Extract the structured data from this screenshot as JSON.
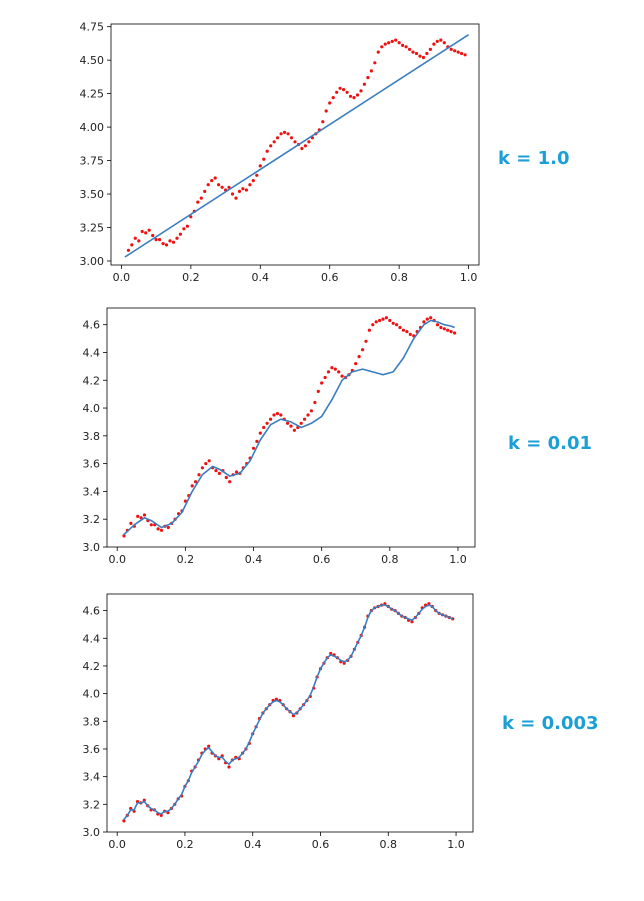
{
  "colors": {
    "fit": "#3a7ebf",
    "points": "#ee1111",
    "axis": "#000000",
    "label": "#1a9fd6"
  },
  "chart_data": [
    {
      "type": "scatter",
      "title": "",
      "annotation": "k = 1.0",
      "xlabel": "",
      "ylabel": "",
      "xlim": [
        -0.03,
        1.03
      ],
      "ylim": [
        2.97,
        4.77
      ],
      "xticks": [
        0.0,
        0.2,
        0.4,
        0.6,
        0.8,
        1.0
      ],
      "xtick_labels": [
        "0.0",
        "0.2",
        "0.4",
        "0.6",
        "0.8",
        "1.0"
      ],
      "yticks": [
        3.0,
        3.25,
        3.5,
        3.75,
        4.0,
        4.25,
        4.5,
        4.75
      ],
      "ytick_labels": [
        "3.00",
        "3.25",
        "3.50",
        "3.75",
        "4.00",
        "4.25",
        "4.50",
        "4.75"
      ],
      "grid": false,
      "series": [
        {
          "kind": "points",
          "x": [
            0.02,
            0.03,
            0.04,
            0.05,
            0.06,
            0.07,
            0.08,
            0.09,
            0.1,
            0.11,
            0.12,
            0.13,
            0.14,
            0.15,
            0.16,
            0.17,
            0.18,
            0.19,
            0.2,
            0.21,
            0.22,
            0.23,
            0.24,
            0.25,
            0.26,
            0.27,
            0.28,
            0.29,
            0.3,
            0.31,
            0.32,
            0.33,
            0.34,
            0.35,
            0.36,
            0.37,
            0.38,
            0.39,
            0.4,
            0.41,
            0.42,
            0.43,
            0.44,
            0.45,
            0.46,
            0.47,
            0.48,
            0.49,
            0.5,
            0.51,
            0.52,
            0.53,
            0.54,
            0.55,
            0.56,
            0.57,
            0.58,
            0.59,
            0.6,
            0.61,
            0.62,
            0.63,
            0.64,
            0.65,
            0.66,
            0.67,
            0.68,
            0.69,
            0.7,
            0.71,
            0.72,
            0.73,
            0.74,
            0.75,
            0.76,
            0.77,
            0.78,
            0.79,
            0.8,
            0.81,
            0.82,
            0.83,
            0.84,
            0.85,
            0.86,
            0.87,
            0.88,
            0.89,
            0.9,
            0.91,
            0.92,
            0.93,
            0.94,
            0.95,
            0.96,
            0.97,
            0.98,
            0.99
          ],
          "y": [
            3.08,
            3.12,
            3.17,
            3.15,
            3.22,
            3.21,
            3.23,
            3.19,
            3.16,
            3.16,
            3.13,
            3.12,
            3.15,
            3.14,
            3.17,
            3.2,
            3.24,
            3.26,
            3.33,
            3.37,
            3.44,
            3.47,
            3.52,
            3.57,
            3.6,
            3.62,
            3.57,
            3.55,
            3.53,
            3.55,
            3.5,
            3.47,
            3.52,
            3.54,
            3.53,
            3.57,
            3.6,
            3.64,
            3.71,
            3.76,
            3.82,
            3.86,
            3.89,
            3.92,
            3.95,
            3.96,
            3.95,
            3.92,
            3.89,
            3.87,
            3.84,
            3.86,
            3.89,
            3.92,
            3.95,
            3.98,
            4.04,
            4.12,
            4.18,
            4.22,
            4.26,
            4.29,
            4.28,
            4.26,
            4.23,
            4.22,
            4.24,
            4.27,
            4.32,
            4.37,
            4.42,
            4.48,
            4.56,
            4.6,
            4.62,
            4.63,
            4.64,
            4.65,
            4.63,
            4.61,
            4.6,
            4.58,
            4.56,
            4.55,
            4.53,
            4.52,
            4.55,
            4.58,
            4.62,
            4.64,
            4.65,
            4.63,
            4.6,
            4.58,
            4.57,
            4.56,
            4.55,
            4.54
          ]
        },
        {
          "kind": "line",
          "x": [
            0.01,
            1.0
          ],
          "y": [
            3.03,
            4.69
          ]
        }
      ]
    },
    {
      "type": "scatter",
      "title": "",
      "annotation": "k = 0.01",
      "xlabel": "",
      "ylabel": "",
      "xlim": [
        -0.03,
        1.05
      ],
      "ylim": [
        3.0,
        4.72
      ],
      "xticks": [
        0.0,
        0.2,
        0.4,
        0.6,
        0.8,
        1.0
      ],
      "xtick_labels": [
        "0.0",
        "0.2",
        "0.4",
        "0.6",
        "0.8",
        "1.0"
      ],
      "yticks": [
        3.0,
        3.2,
        3.4,
        3.6,
        3.8,
        4.0,
        4.2,
        4.4,
        4.6
      ],
      "ytick_labels": [
        "3.0",
        "3.2",
        "3.4",
        "3.6",
        "3.8",
        "4.0",
        "4.2",
        "4.4",
        "4.6"
      ],
      "grid": false,
      "series": [
        {
          "kind": "points",
          "x": [
            0.02,
            0.03,
            0.04,
            0.05,
            0.06,
            0.07,
            0.08,
            0.09,
            0.1,
            0.11,
            0.12,
            0.13,
            0.14,
            0.15,
            0.16,
            0.17,
            0.18,
            0.19,
            0.2,
            0.21,
            0.22,
            0.23,
            0.24,
            0.25,
            0.26,
            0.27,
            0.28,
            0.29,
            0.3,
            0.31,
            0.32,
            0.33,
            0.34,
            0.35,
            0.36,
            0.37,
            0.38,
            0.39,
            0.4,
            0.41,
            0.42,
            0.43,
            0.44,
            0.45,
            0.46,
            0.47,
            0.48,
            0.49,
            0.5,
            0.51,
            0.52,
            0.53,
            0.54,
            0.55,
            0.56,
            0.57,
            0.58,
            0.59,
            0.6,
            0.61,
            0.62,
            0.63,
            0.64,
            0.65,
            0.66,
            0.67,
            0.68,
            0.69,
            0.7,
            0.71,
            0.72,
            0.73,
            0.74,
            0.75,
            0.76,
            0.77,
            0.78,
            0.79,
            0.8,
            0.81,
            0.82,
            0.83,
            0.84,
            0.85,
            0.86,
            0.87,
            0.88,
            0.89,
            0.9,
            0.91,
            0.92,
            0.93,
            0.94,
            0.95,
            0.96,
            0.97,
            0.98,
            0.99
          ],
          "y": [
            3.08,
            3.12,
            3.17,
            3.15,
            3.22,
            3.21,
            3.23,
            3.19,
            3.16,
            3.16,
            3.13,
            3.12,
            3.15,
            3.14,
            3.17,
            3.2,
            3.24,
            3.26,
            3.33,
            3.37,
            3.44,
            3.47,
            3.52,
            3.57,
            3.6,
            3.62,
            3.57,
            3.55,
            3.53,
            3.55,
            3.5,
            3.47,
            3.52,
            3.54,
            3.53,
            3.57,
            3.6,
            3.64,
            3.71,
            3.76,
            3.82,
            3.86,
            3.89,
            3.92,
            3.95,
            3.96,
            3.95,
            3.92,
            3.89,
            3.87,
            3.84,
            3.86,
            3.89,
            3.92,
            3.95,
            3.98,
            4.04,
            4.12,
            4.18,
            4.22,
            4.26,
            4.29,
            4.28,
            4.26,
            4.23,
            4.22,
            4.24,
            4.27,
            4.32,
            4.37,
            4.42,
            4.48,
            4.56,
            4.6,
            4.62,
            4.63,
            4.64,
            4.65,
            4.63,
            4.61,
            4.6,
            4.58,
            4.56,
            4.55,
            4.53,
            4.52,
            4.55,
            4.58,
            4.62,
            4.64,
            4.65,
            4.63,
            4.6,
            4.58,
            4.57,
            4.56,
            4.55,
            4.54
          ]
        },
        {
          "kind": "line",
          "x": [
            0.02,
            0.05,
            0.08,
            0.1,
            0.13,
            0.16,
            0.19,
            0.22,
            0.25,
            0.28,
            0.3,
            0.33,
            0.36,
            0.39,
            0.42,
            0.45,
            0.48,
            0.51,
            0.54,
            0.57,
            0.6,
            0.63,
            0.66,
            0.69,
            0.72,
            0.75,
            0.78,
            0.81,
            0.84,
            0.87,
            0.9,
            0.92,
            0.94,
            0.96,
            0.98,
            0.99
          ],
          "y": [
            3.09,
            3.16,
            3.21,
            3.19,
            3.14,
            3.17,
            3.25,
            3.4,
            3.52,
            3.58,
            3.56,
            3.51,
            3.53,
            3.62,
            3.77,
            3.88,
            3.92,
            3.9,
            3.86,
            3.89,
            3.94,
            4.06,
            4.2,
            4.26,
            4.28,
            4.26,
            4.24,
            4.26,
            4.36,
            4.5,
            4.6,
            4.63,
            4.62,
            4.6,
            4.59,
            4.58
          ]
        }
      ]
    },
    {
      "type": "scatter",
      "title": "",
      "annotation": "k = 0.003",
      "xlabel": "",
      "ylabel": "",
      "xlim": [
        -0.03,
        1.05
      ],
      "ylim": [
        3.0,
        4.72
      ],
      "xticks": [
        0.0,
        0.2,
        0.4,
        0.6,
        0.8,
        1.0
      ],
      "xtick_labels": [
        "0.0",
        "0.2",
        "0.4",
        "0.6",
        "0.8",
        "1.0"
      ],
      "yticks": [
        3.0,
        3.2,
        3.4,
        3.6,
        3.8,
        4.0,
        4.2,
        4.4,
        4.6
      ],
      "ytick_labels": [
        "3.0",
        "3.2",
        "3.4",
        "3.6",
        "3.8",
        "4.0",
        "4.2",
        "4.4",
        "4.6"
      ],
      "grid": false,
      "series": [
        {
          "kind": "points",
          "x": [
            0.02,
            0.03,
            0.04,
            0.05,
            0.06,
            0.07,
            0.08,
            0.09,
            0.1,
            0.11,
            0.12,
            0.13,
            0.14,
            0.15,
            0.16,
            0.17,
            0.18,
            0.19,
            0.2,
            0.21,
            0.22,
            0.23,
            0.24,
            0.25,
            0.26,
            0.27,
            0.28,
            0.29,
            0.3,
            0.31,
            0.32,
            0.33,
            0.34,
            0.35,
            0.36,
            0.37,
            0.38,
            0.39,
            0.4,
            0.41,
            0.42,
            0.43,
            0.44,
            0.45,
            0.46,
            0.47,
            0.48,
            0.49,
            0.5,
            0.51,
            0.52,
            0.53,
            0.54,
            0.55,
            0.56,
            0.57,
            0.58,
            0.59,
            0.6,
            0.61,
            0.62,
            0.63,
            0.64,
            0.65,
            0.66,
            0.67,
            0.68,
            0.69,
            0.7,
            0.71,
            0.72,
            0.73,
            0.74,
            0.75,
            0.76,
            0.77,
            0.78,
            0.79,
            0.8,
            0.81,
            0.82,
            0.83,
            0.84,
            0.85,
            0.86,
            0.87,
            0.88,
            0.89,
            0.9,
            0.91,
            0.92,
            0.93,
            0.94,
            0.95,
            0.96,
            0.97,
            0.98,
            0.99
          ],
          "y": [
            3.08,
            3.12,
            3.17,
            3.15,
            3.22,
            3.21,
            3.23,
            3.19,
            3.16,
            3.16,
            3.13,
            3.12,
            3.15,
            3.14,
            3.17,
            3.2,
            3.24,
            3.26,
            3.33,
            3.37,
            3.44,
            3.47,
            3.52,
            3.57,
            3.6,
            3.62,
            3.57,
            3.55,
            3.53,
            3.55,
            3.5,
            3.47,
            3.52,
            3.54,
            3.53,
            3.57,
            3.6,
            3.64,
            3.71,
            3.76,
            3.82,
            3.86,
            3.89,
            3.92,
            3.95,
            3.96,
            3.95,
            3.92,
            3.89,
            3.87,
            3.84,
            3.86,
            3.89,
            3.92,
            3.95,
            3.98,
            4.04,
            4.12,
            4.18,
            4.22,
            4.26,
            4.29,
            4.28,
            4.26,
            4.23,
            4.22,
            4.24,
            4.27,
            4.32,
            4.37,
            4.42,
            4.48,
            4.56,
            4.6,
            4.62,
            4.63,
            4.64,
            4.65,
            4.63,
            4.61,
            4.6,
            4.58,
            4.56,
            4.55,
            4.53,
            4.52,
            4.55,
            4.58,
            4.62,
            4.64,
            4.65,
            4.63,
            4.6,
            4.58,
            4.57,
            4.56,
            4.55,
            4.54
          ]
        },
        {
          "kind": "line",
          "x": [
            0.02,
            0.03,
            0.04,
            0.05,
            0.06,
            0.07,
            0.08,
            0.09,
            0.1,
            0.11,
            0.12,
            0.13,
            0.14,
            0.15,
            0.16,
            0.17,
            0.18,
            0.19,
            0.2,
            0.21,
            0.22,
            0.23,
            0.24,
            0.25,
            0.26,
            0.27,
            0.28,
            0.29,
            0.3,
            0.31,
            0.32,
            0.33,
            0.34,
            0.35,
            0.36,
            0.37,
            0.38,
            0.39,
            0.4,
            0.41,
            0.42,
            0.43,
            0.44,
            0.45,
            0.46,
            0.47,
            0.48,
            0.49,
            0.5,
            0.51,
            0.52,
            0.53,
            0.54,
            0.55,
            0.56,
            0.57,
            0.58,
            0.59,
            0.6,
            0.61,
            0.62,
            0.63,
            0.64,
            0.65,
            0.66,
            0.67,
            0.68,
            0.69,
            0.7,
            0.71,
            0.72,
            0.73,
            0.74,
            0.75,
            0.76,
            0.77,
            0.78,
            0.79,
            0.8,
            0.81,
            0.82,
            0.83,
            0.84,
            0.85,
            0.86,
            0.87,
            0.88,
            0.89,
            0.9,
            0.91,
            0.92,
            0.93,
            0.94,
            0.95,
            0.96,
            0.97,
            0.98,
            0.99
          ],
          "y": [
            3.09,
            3.12,
            3.16,
            3.16,
            3.21,
            3.21,
            3.22,
            3.19,
            3.17,
            3.16,
            3.14,
            3.13,
            3.15,
            3.15,
            3.17,
            3.2,
            3.24,
            3.27,
            3.33,
            3.37,
            3.43,
            3.47,
            3.51,
            3.56,
            3.59,
            3.61,
            3.58,
            3.55,
            3.54,
            3.54,
            3.51,
            3.49,
            3.52,
            3.53,
            3.54,
            3.57,
            3.6,
            3.65,
            3.71,
            3.76,
            3.81,
            3.86,
            3.89,
            3.92,
            3.94,
            3.95,
            3.94,
            3.92,
            3.89,
            3.87,
            3.85,
            3.86,
            3.89,
            3.92,
            3.95,
            3.99,
            4.05,
            4.12,
            4.18,
            4.22,
            4.26,
            4.28,
            4.27,
            4.26,
            4.24,
            4.23,
            4.24,
            4.27,
            4.32,
            4.37,
            4.42,
            4.48,
            4.55,
            4.6,
            4.62,
            4.63,
            4.64,
            4.64,
            4.63,
            4.61,
            4.6,
            4.58,
            4.56,
            4.55,
            4.54,
            4.53,
            4.55,
            4.58,
            4.61,
            4.63,
            4.64,
            4.63,
            4.6,
            4.58,
            4.57,
            4.56,
            4.55,
            4.54
          ]
        }
      ]
    }
  ]
}
